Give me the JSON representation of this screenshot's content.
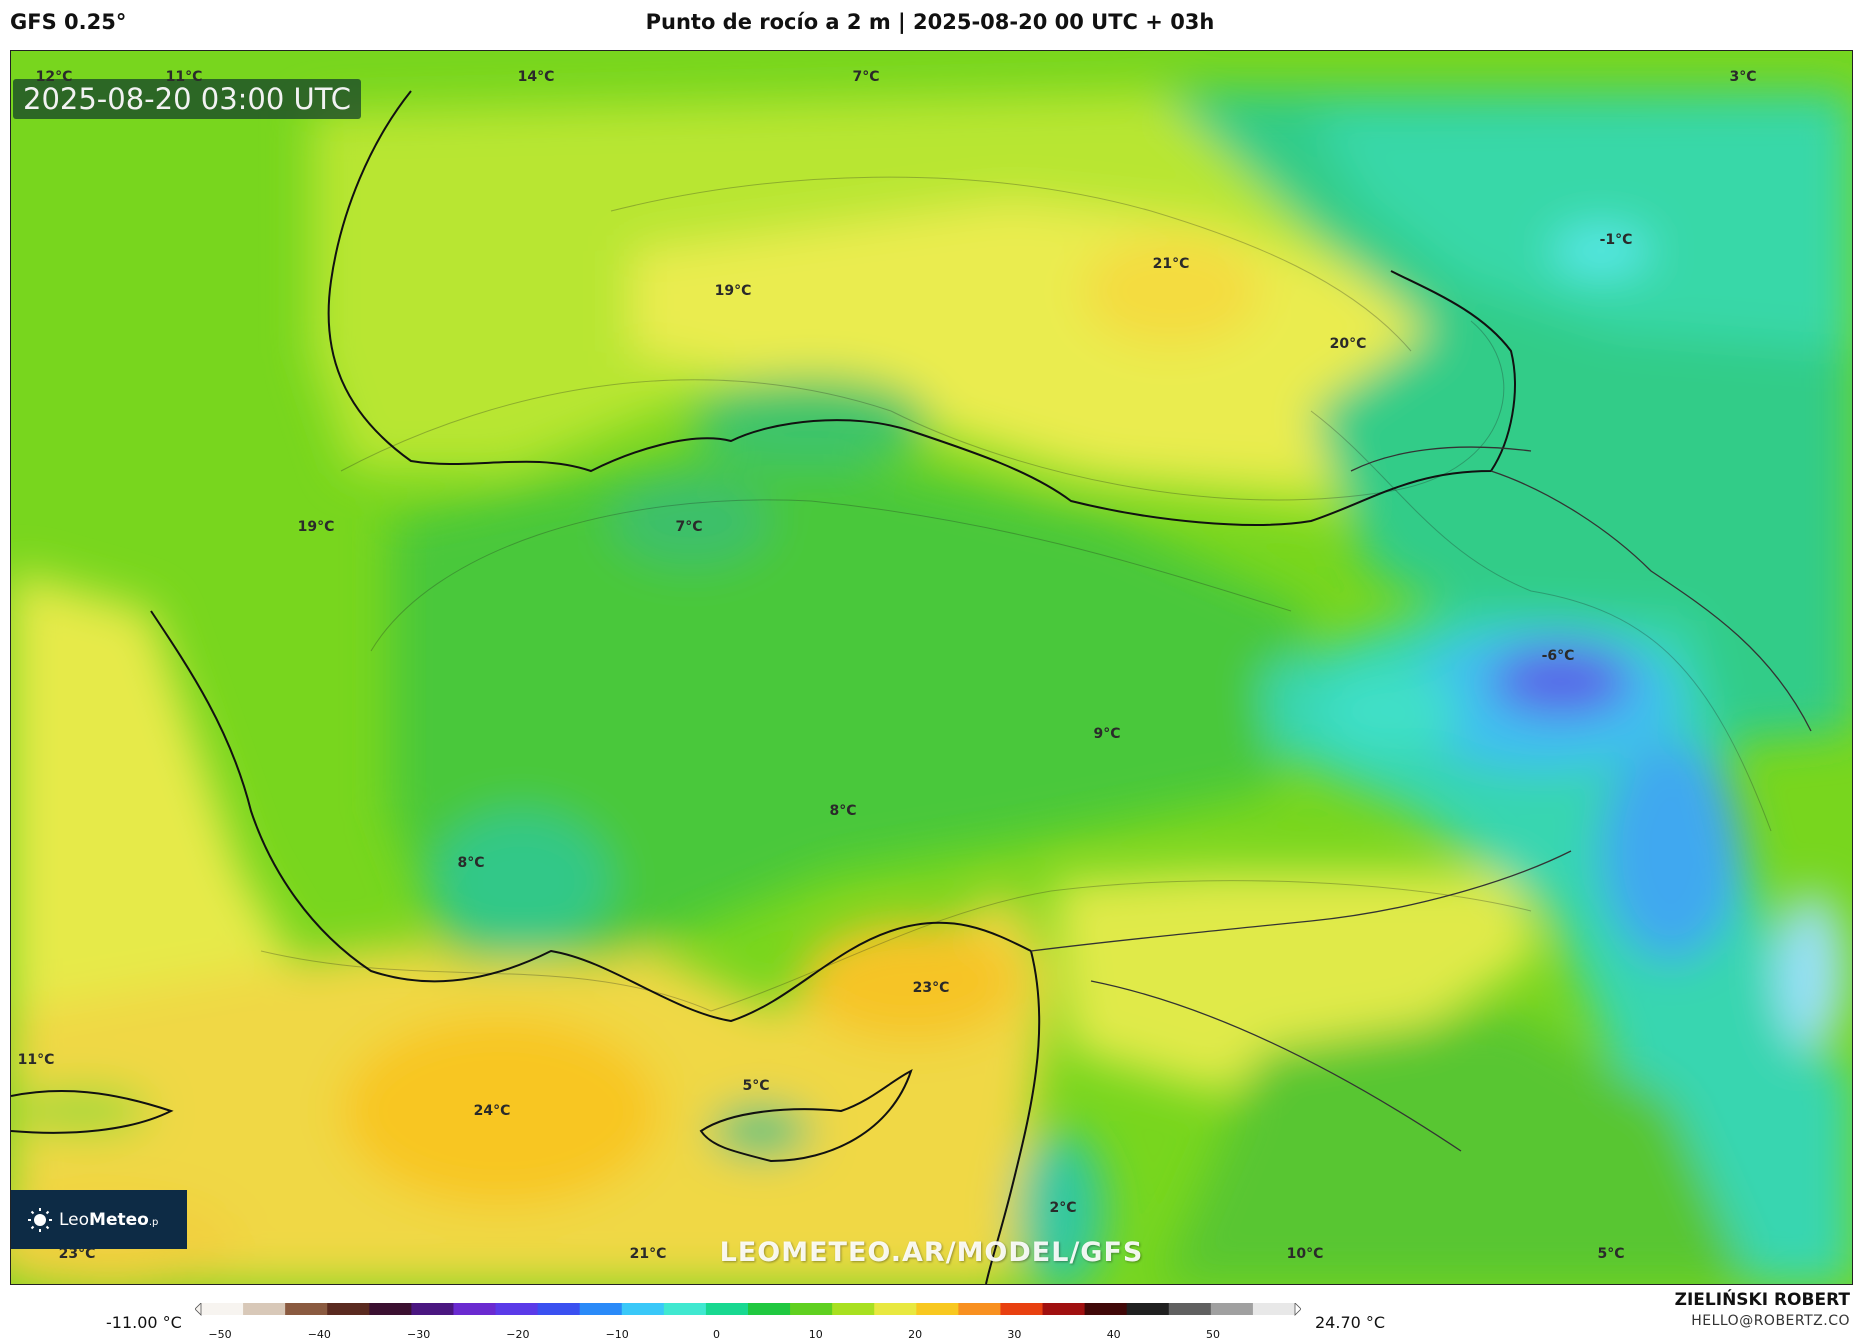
{
  "header": {
    "model": "GFS 0.25°",
    "title": "Punto de rocío a 2 m | 2025-08-20 00 UTC + 03h"
  },
  "map": {
    "timestamp": "2025-08-20 03:00 UTC",
    "watermark": "LEOMETEO.AR/MODEL/GFS",
    "logo": {
      "prefix": "Leo",
      "bold": "Meteo",
      "suffix": ".p"
    },
    "labels": [
      {
        "text": "12°C"
      },
      {
        "text": "11°C"
      },
      {
        "text": "14°C"
      },
      {
        "text": "7°C"
      },
      {
        "text": "3°C"
      },
      {
        "text": "-1°C"
      },
      {
        "text": "21°C"
      },
      {
        "text": "19°C"
      },
      {
        "text": "20°C"
      },
      {
        "text": "19°C"
      },
      {
        "text": "7°C"
      },
      {
        "text": "-6°C"
      },
      {
        "text": "9°C"
      },
      {
        "text": "8°C"
      },
      {
        "text": "8°C"
      },
      {
        "text": "23°C"
      },
      {
        "text": "11°C"
      },
      {
        "text": "5°C"
      },
      {
        "text": "24°C"
      },
      {
        "text": "2°C"
      },
      {
        "text": "23°C"
      },
      {
        "text": "21°C"
      },
      {
        "text": "10°C"
      },
      {
        "text": "5°C"
      }
    ]
  },
  "legend": {
    "min_value": "-11.00 °C",
    "max_value": "24.70 °C",
    "ticks": [
      "−50",
      "−40",
      "−30",
      "−20",
      "−10",
      "0",
      "10",
      "20",
      "30",
      "40",
      "50"
    ],
    "colors": [
      "#f7f4f0",
      "#d8c8b8",
      "#8a5a40",
      "#5a2a20",
      "#3b1030",
      "#4a1680",
      "#6a2ad0",
      "#5a3ae8",
      "#3a50f0",
      "#2a8af8",
      "#3ac8f8",
      "#40e8d0",
      "#18d890",
      "#20c840",
      "#60d020",
      "#a8e020",
      "#e8e840",
      "#f8c820",
      "#f89020",
      "#e84010",
      "#a01010",
      "#400808",
      "#202020",
      "#606060",
      "#a0a0a0",
      "#e8e8e8"
    ]
  },
  "author": {
    "name": "ZIELIŃSKI ROBERT",
    "email": "HELLO@ROBERTZ.CO"
  }
}
